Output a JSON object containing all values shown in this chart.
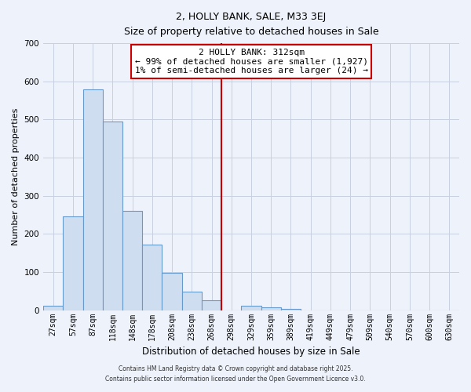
{
  "title": "2, HOLLY BANK, SALE, M33 3EJ",
  "subtitle": "Size of property relative to detached houses in Sale",
  "xlabel": "Distribution of detached houses by size in Sale",
  "ylabel": "Number of detached properties",
  "bar_labels": [
    "27sqm",
    "57sqm",
    "87sqm",
    "118sqm",
    "148sqm",
    "178sqm",
    "208sqm",
    "238sqm",
    "268sqm",
    "298sqm",
    "329sqm",
    "359sqm",
    "389sqm",
    "419sqm",
    "449sqm",
    "479sqm",
    "509sqm",
    "540sqm",
    "570sqm",
    "600sqm",
    "630sqm"
  ],
  "bar_values": [
    12,
    245,
    578,
    495,
    260,
    172,
    97,
    48,
    27,
    0,
    12,
    8,
    3,
    0,
    0,
    0,
    0,
    0,
    0,
    0,
    0
  ],
  "bar_color": "#cfddf0",
  "bar_edge_color": "#6699cc",
  "vline_x": 9.0,
  "vline_color": "#cc0000",
  "ylim": [
    0,
    700
  ],
  "yticks": [
    0,
    100,
    200,
    300,
    400,
    500,
    600,
    700
  ],
  "annotation_title": "2 HOLLY BANK: 312sqm",
  "annotation_line1": "← 99% of detached houses are smaller (1,927)",
  "annotation_line2": "1% of semi-detached houses are larger (24) →",
  "grid_color": "#c8d0e0",
  "background_color": "#eef2fb",
  "footnote1": "Contains HM Land Registry data © Crown copyright and database right 2025.",
  "footnote2": "Contains public sector information licensed under the Open Government Licence v3.0."
}
